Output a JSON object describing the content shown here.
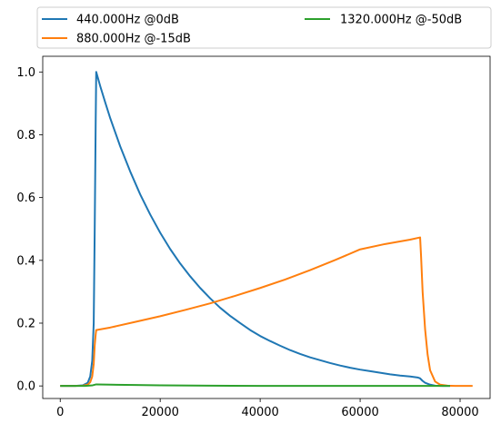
{
  "chart_data": {
    "type": "line",
    "title": "",
    "xlabel": "",
    "ylabel": "",
    "xlim": [
      -3500,
      86000
    ],
    "ylim": [
      -0.04,
      1.05
    ],
    "grid": false,
    "legend_position": "above plot, two columns",
    "x_ticks": [
      {
        "value": 0,
        "label": "0"
      },
      {
        "value": 20000,
        "label": "20000"
      },
      {
        "value": 40000,
        "label": "40000"
      },
      {
        "value": 60000,
        "label": "60000"
      },
      {
        "value": 80000,
        "label": "80000"
      }
    ],
    "y_ticks": [
      {
        "value": 0.0,
        "label": "0.0"
      },
      {
        "value": 0.2,
        "label": "0.2"
      },
      {
        "value": 0.4,
        "label": "0.4"
      },
      {
        "value": 0.6,
        "label": "0.6"
      },
      {
        "value": 0.8,
        "label": "0.8"
      },
      {
        "value": 1.0,
        "label": "1.0"
      }
    ],
    "series": [
      {
        "name": "440.000Hz @0dB",
        "color": "#1f77b4",
        "points": [
          [
            0,
            0.0
          ],
          [
            3000,
            0.0
          ],
          [
            4500,
            0.002
          ],
          [
            5500,
            0.01
          ],
          [
            6000,
            0.03
          ],
          [
            6400,
            0.08
          ],
          [
            6700,
            0.2
          ],
          [
            6900,
            0.5
          ],
          [
            7100,
            0.85
          ],
          [
            7200,
            1.0
          ],
          [
            8000,
            0.955
          ],
          [
            9000,
            0.903
          ],
          [
            10000,
            0.853
          ],
          [
            12000,
            0.763
          ],
          [
            14000,
            0.683
          ],
          [
            16000,
            0.61
          ],
          [
            18000,
            0.546
          ],
          [
            20000,
            0.488
          ],
          [
            22000,
            0.436
          ],
          [
            24000,
            0.39
          ],
          [
            26000,
            0.349
          ],
          [
            28000,
            0.312
          ],
          [
            30000,
            0.279
          ],
          [
            32000,
            0.249
          ],
          [
            34000,
            0.223
          ],
          [
            36000,
            0.2
          ],
          [
            38000,
            0.178
          ],
          [
            40000,
            0.159
          ],
          [
            42000,
            0.143
          ],
          [
            44000,
            0.128
          ],
          [
            46000,
            0.114
          ],
          [
            48000,
            0.102
          ],
          [
            50000,
            0.091
          ],
          [
            52000,
            0.082
          ],
          [
            54000,
            0.073
          ],
          [
            56000,
            0.065
          ],
          [
            58000,
            0.058
          ],
          [
            60000,
            0.052
          ],
          [
            62000,
            0.047
          ],
          [
            64000,
            0.042
          ],
          [
            66000,
            0.037
          ],
          [
            68000,
            0.033
          ],
          [
            70000,
            0.03
          ],
          [
            71500,
            0.027
          ],
          [
            72000,
            0.024
          ],
          [
            72500,
            0.016
          ],
          [
            73000,
            0.01
          ],
          [
            74000,
            0.004
          ],
          [
            75000,
            0.001
          ],
          [
            76500,
            0.0
          ],
          [
            78000,
            0.0
          ]
        ]
      },
      {
        "name": "880.000Hz @-15dB",
        "color": "#ff7f0e",
        "points": [
          [
            0,
            0.0
          ],
          [
            3000,
            0.0
          ],
          [
            4500,
            0.001
          ],
          [
            5500,
            0.004
          ],
          [
            6000,
            0.012
          ],
          [
            6400,
            0.03
          ],
          [
            6700,
            0.07
          ],
          [
            6900,
            0.13
          ],
          [
            7100,
            0.165
          ],
          [
            7200,
            0.178
          ],
          [
            10000,
            0.186
          ],
          [
            15000,
            0.204
          ],
          [
            20000,
            0.222
          ],
          [
            25000,
            0.242
          ],
          [
            30000,
            0.263
          ],
          [
            35000,
            0.287
          ],
          [
            40000,
            0.312
          ],
          [
            45000,
            0.339
          ],
          [
            50000,
            0.369
          ],
          [
            55000,
            0.401
          ],
          [
            60000,
            0.435
          ],
          [
            65000,
            0.452
          ],
          [
            70000,
            0.466
          ],
          [
            72000,
            0.473
          ],
          [
            72200,
            0.41
          ],
          [
            72500,
            0.3
          ],
          [
            73000,
            0.18
          ],
          [
            73500,
            0.1
          ],
          [
            74000,
            0.05
          ],
          [
            75000,
            0.014
          ],
          [
            76000,
            0.004
          ],
          [
            77500,
            0.001
          ],
          [
            79000,
            0.0
          ],
          [
            82500,
            0.0
          ]
        ]
      },
      {
        "name": "1320.000Hz @-50dB",
        "color": "#2ca02c",
        "points": [
          [
            0,
            0.0
          ],
          [
            5000,
            0.0
          ],
          [
            6500,
            0.002
          ],
          [
            7200,
            0.005
          ],
          [
            10000,
            0.004
          ],
          [
            15000,
            0.003
          ],
          [
            20000,
            0.002
          ],
          [
            30000,
            0.001
          ],
          [
            40000,
            0.0
          ],
          [
            60000,
            0.0
          ],
          [
            72000,
            0.0
          ],
          [
            73000,
            0.0
          ],
          [
            78000,
            0.0
          ]
        ]
      }
    ]
  }
}
